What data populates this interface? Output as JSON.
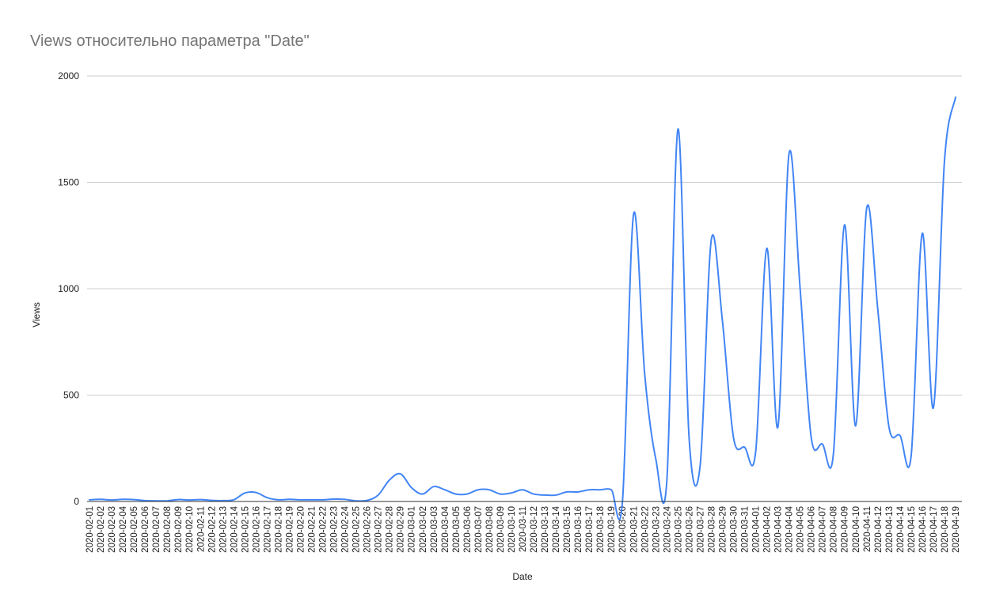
{
  "chart_data": {
    "type": "line",
    "title": "Views относительно параметра \"Date\"",
    "xlabel": "Date",
    "ylabel": "Views",
    "ylim": [
      0,
      2000
    ],
    "yticks": [
      0,
      500,
      1000,
      1500,
      2000
    ],
    "grid": true,
    "legend": "none",
    "smooth": true,
    "colors": {
      "series": "#4285f4",
      "grid": "#cccccc",
      "axis": "#333333",
      "title": "#757575",
      "text": "#222222"
    },
    "x": [
      "2020-02-01",
      "2020-02-02",
      "2020-02-03",
      "2020-02-04",
      "2020-02-05",
      "2020-02-06",
      "2020-02-07",
      "2020-02-08",
      "2020-02-09",
      "2020-02-10",
      "2020-02-11",
      "2020-02-12",
      "2020-02-13",
      "2020-02-14",
      "2020-02-15",
      "2020-02-16",
      "2020-02-17",
      "2020-02-18",
      "2020-02-19",
      "2020-02-20",
      "2020-02-21",
      "2020-02-22",
      "2020-02-23",
      "2020-02-24",
      "2020-02-25",
      "2020-02-26",
      "2020-02-27",
      "2020-02-28",
      "2020-02-29",
      "2020-03-01",
      "2020-03-02",
      "2020-03-03",
      "2020-03-04",
      "2020-03-05",
      "2020-03-06",
      "2020-03-07",
      "2020-03-08",
      "2020-03-09",
      "2020-03-10",
      "2020-03-11",
      "2020-03-12",
      "2020-03-13",
      "2020-03-14",
      "2020-03-15",
      "2020-03-16",
      "2020-03-17",
      "2020-03-18",
      "2020-03-19",
      "2020-03-20",
      "2020-03-21",
      "2020-03-22",
      "2020-03-23",
      "2020-03-24",
      "2020-03-25",
      "2020-03-26",
      "2020-03-27",
      "2020-03-28",
      "2020-03-29",
      "2020-03-30",
      "2020-03-31",
      "2020-04-01",
      "2020-04-02",
      "2020-04-03",
      "2020-04-04",
      "2020-04-05",
      "2020-04-06",
      "2020-04-07",
      "2020-04-08",
      "2020-04-09",
      "2020-04-10",
      "2020-04-11",
      "2020-04-12",
      "2020-04-13",
      "2020-04-14",
      "2020-04-15",
      "2020-04-16",
      "2020-04-17",
      "2020-04-18",
      "2020-04-19"
    ],
    "series": [
      {
        "values": [
          8,
          10,
          7,
          10,
          9,
          4,
          3,
          3,
          9,
          7,
          9,
          5,
          4,
          8,
          40,
          42,
          18,
          8,
          10,
          8,
          8,
          8,
          11,
          10,
          3,
          5,
          30,
          100,
          130,
          65,
          35,
          70,
          55,
          35,
          35,
          55,
          55,
          35,
          40,
          55,
          35,
          30,
          30,
          45,
          45,
          55,
          55,
          55,
          0,
          1350,
          600,
          200,
          100,
          1750,
          300,
          170,
          1230,
          850,
          300,
          255,
          235,
          1190,
          350,
          1635,
          1000,
          300,
          270,
          225,
          1300,
          355,
          1380,
          900,
          350,
          310,
          215,
          1260,
          440,
          1600,
          1900
        ]
      }
    ]
  }
}
